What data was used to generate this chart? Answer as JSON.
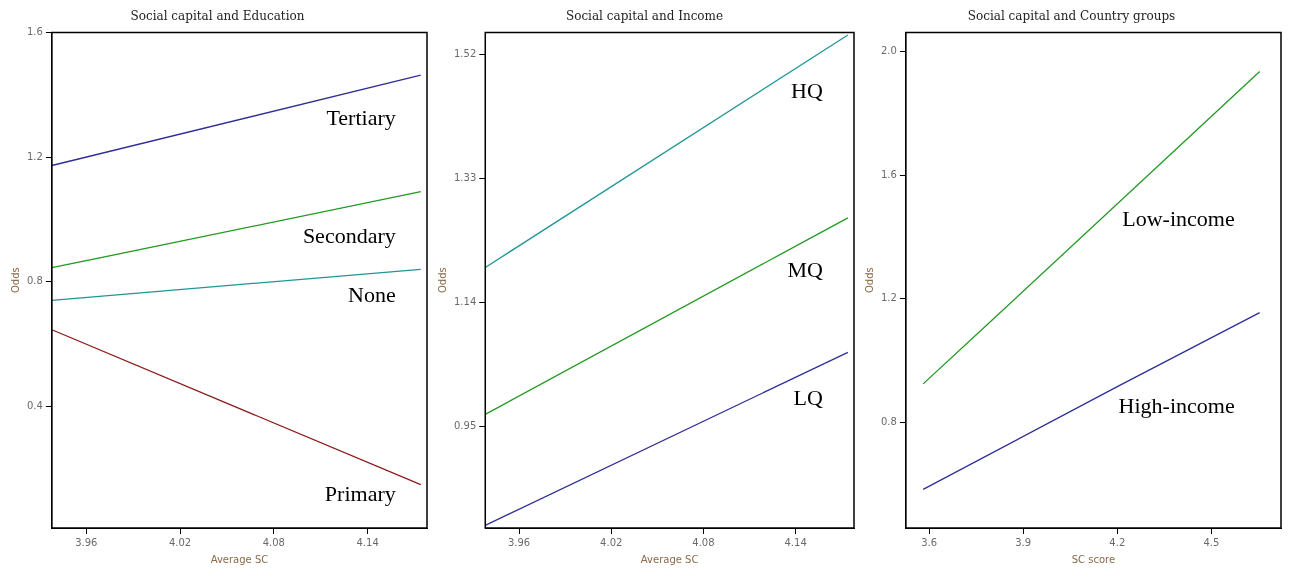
{
  "chart_data": [
    {
      "type": "line",
      "title": "Social capital and Education",
      "xlabel": "Average SC",
      "ylabel": "Odds",
      "xlim": [
        3.938,
        4.178
      ],
      "xticks": [
        3.96,
        4.02,
        4.08,
        4.14
      ],
      "ylim": [
        0.01,
        1.6
      ],
      "yticks": [
        0.4,
        0.8,
        1.2,
        1.6
      ],
      "grid": false,
      "legend": false,
      "series": [
        {
          "name": "Tertiary",
          "color": "#2e2e96",
          "x": [
            3.938,
            4.174
          ],
          "values": [
            1.173,
            1.463
          ]
        },
        {
          "name": "Secondary",
          "color": "#229922",
          "x": [
            3.938,
            4.174
          ],
          "values": [
            0.845,
            1.089
          ]
        },
        {
          "name": "None",
          "color": "#1f9595",
          "x": [
            3.938,
            4.174
          ],
          "values": [
            0.74,
            0.84
          ]
        },
        {
          "name": "Primary",
          "color": "#8b1c1c",
          "x": [
            3.938,
            4.174
          ],
          "values": [
            0.646,
            0.149
          ]
        }
      ]
    },
    {
      "type": "line",
      "title": "Social capital and Income",
      "xlabel": "Average SC",
      "ylabel": "Odds",
      "xlim": [
        3.938,
        4.178
      ],
      "xticks": [
        3.96,
        4.02,
        4.08,
        4.14
      ],
      "ylim": [
        0.795,
        1.554
      ],
      "yticks": [
        0.95,
        1.14,
        1.33,
        1.52
      ],
      "grid": false,
      "legend": false,
      "series": [
        {
          "name": "HQ",
          "color": "#1f9595",
          "x": [
            3.938,
            4.174
          ],
          "values": [
            1.194,
            1.55
          ]
        },
        {
          "name": "MQ",
          "color": "#229922",
          "x": [
            3.938,
            4.174
          ],
          "values": [
            0.969,
            1.27
          ]
        },
        {
          "name": "LQ",
          "color": "#2e2e96",
          "x": [
            3.938,
            4.174
          ],
          "values": [
            0.799,
            1.064
          ]
        }
      ]
    },
    {
      "type": "line",
      "title": "Social capital and Country groups",
      "xlabel": "SC score",
      "ylabel": "Odds",
      "xlim": [
        3.526,
        4.722
      ],
      "xticks": [
        3.6,
        3.9,
        4.2,
        4.5
      ],
      "ylim": [
        0.457,
        2.063
      ],
      "yticks": [
        0.8,
        1.2,
        1.6,
        {
          "value": 2,
          "label": "2.0"
        }
      ],
      "grid": false,
      "legend": false,
      "series": [
        {
          "name": "Low-income",
          "color": "#229922",
          "x": [
            3.581,
            3.814,
            4.654
          ],
          "values": [
            0.924,
            1.143,
            1.936
          ]
        },
        {
          "name": "High-income",
          "color": "#2e2e96",
          "x": [
            3.581,
            4.2,
            4.654
          ],
          "values": [
            0.582,
            0.915,
            1.155
          ]
        }
      ]
    }
  ]
}
